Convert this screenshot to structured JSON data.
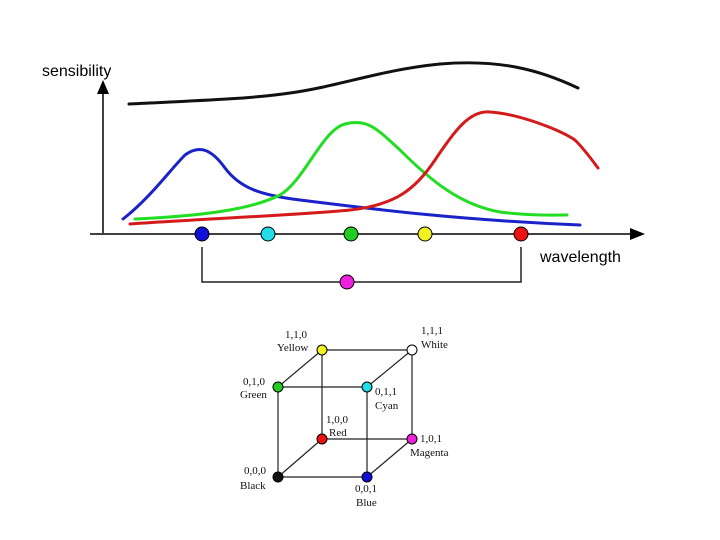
{
  "graph": {
    "y_axis_label": "sensibility",
    "x_axis_label": "wavelength",
    "curves": [
      {
        "name": "luminosity-curve",
        "color": "#111111"
      },
      {
        "name": "blue-curve",
        "color": "#1a22c8"
      },
      {
        "name": "green-curve",
        "color": "#22dd22"
      },
      {
        "name": "red-curve",
        "color": "#d41a1a"
      }
    ],
    "wavelength_dots": [
      {
        "name": "blue-dot",
        "color": "#1010d8"
      },
      {
        "name": "cyan-dot",
        "color": "#22dde8"
      },
      {
        "name": "green-dot",
        "color": "#22cc22"
      },
      {
        "name": "yellow-dot",
        "color": "#f2f222"
      },
      {
        "name": "red-dot",
        "color": "#ee1111"
      }
    ],
    "mix_dot": {
      "name": "magenta-dot",
      "color": "#ee22dd"
    }
  },
  "cube": {
    "corners": {
      "yellow": {
        "coords": "1,1,0",
        "label": "Yellow",
        "color": "#f2f222"
      },
      "white": {
        "coords": "1,1,1",
        "label": "White",
        "color": "#ffffff"
      },
      "green": {
        "coords": "0,1,0",
        "label": "Green",
        "color": "#22cc22"
      },
      "cyan": {
        "coords": "0,1,1",
        "label": "Cyan",
        "color": "#22dde8"
      },
      "red": {
        "coords": "1,0,0",
        "label": "Red",
        "color": "#ee1111"
      },
      "magenta": {
        "coords": "1,0,1",
        "label": "Magenta",
        "color": "#ee22dd"
      },
      "black": {
        "coords": "0,0,0",
        "label": "Black",
        "color": "#111111"
      },
      "blue": {
        "coords": "0,0,1",
        "label": "Blue",
        "color": "#1010d8"
      }
    }
  }
}
